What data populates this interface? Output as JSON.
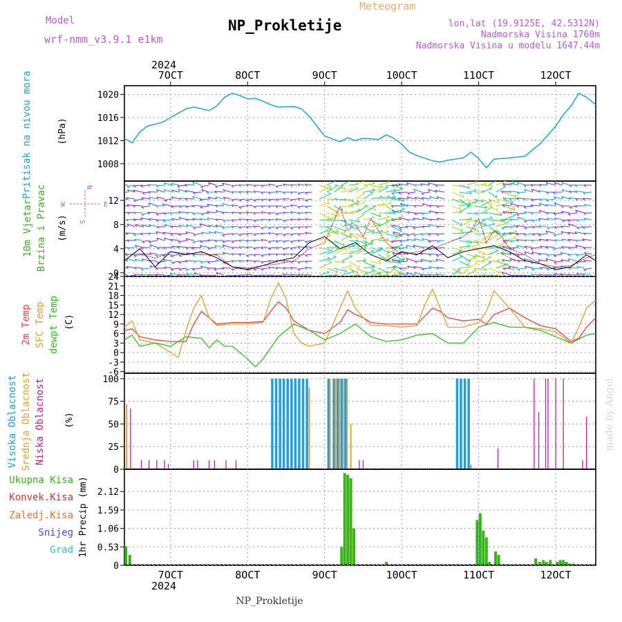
{
  "header": {
    "model_label": "Model",
    "model_name": "wrf-nmm_v3.9.1 e1km",
    "title": "NP_Prokletije",
    "meteogram_label": "Meteogram",
    "lonlat": "lon,lat (19.9125E, 42.5312N)",
    "elevation": "Nadmorska Visina 1760m",
    "model_elevation": "Nadmorska Visina u modelu 1647.44m",
    "footer_title": "NP_Prokletije",
    "watermark": "made by Angel"
  },
  "colors": {
    "pressure": "#1fa2e0",
    "temp2m": "#e84040",
    "sfc_temp": "#e0a030",
    "dewpoint": "#30c020",
    "high_cloud": "#1e9ee6",
    "mid_cloud": "#e0a030",
    "low_cloud": "#c0208a",
    "total_precip": "#3cb020",
    "magenta_text": "#b35cd6",
    "orange_text": "#e8b060",
    "wind_speed_red": "#e03030",
    "wind_speed_black": "#000000"
  },
  "chart_data": [
    {
      "type": "line",
      "id": "pressure",
      "ylabel": "Pritisak na nivou mora",
      "unit": "(hPa)",
      "ylim": [
        1005,
        1021.5
      ],
      "yticks": [
        1008,
        1012,
        1016,
        1020
      ],
      "grid": true,
      "date_axis": {
        "year": "2024",
        "ticks": [
          "7OCT",
          "8OCT",
          "9OCT",
          "10OCT",
          "11OCT",
          "12OCT"
        ],
        "range_days": [
          6.4,
          12.52
        ],
        "tick_days": [
          7,
          8,
          9,
          10,
          11,
          12
        ]
      },
      "series": [
        {
          "name": "",
          "x": [
            6.4,
            6.5,
            6.6,
            6.7,
            6.9,
            7.0,
            7.2,
            7.3,
            7.5,
            7.6,
            7.7,
            7.8,
            7.9,
            8.0,
            8.1,
            8.2,
            8.3,
            8.4,
            8.6,
            8.7,
            8.8,
            8.9,
            9.0,
            9.2,
            9.3,
            9.4,
            9.5,
            9.7,
            9.8,
            9.9,
            10.0,
            10.1,
            10.2,
            10.4,
            10.5,
            10.6,
            10.8,
            10.9,
            11.0,
            11.1,
            11.2,
            11.4,
            11.6,
            11.8,
            12.0,
            12.1,
            12.2,
            12.3,
            12.4,
            12.52
          ],
          "values": [
            1012.4,
            1011.6,
            1013.5,
            1014.5,
            1015.2,
            1016,
            1017.5,
            1017.8,
            1017.2,
            1018,
            1019.5,
            1020.2,
            1019.8,
            1019.2,
            1019.3,
            1018.8,
            1018.2,
            1017.8,
            1017.9,
            1017.5,
            1016.2,
            1014.5,
            1012.8,
            1011.8,
            1012.5,
            1012,
            1012.4,
            1012.2,
            1013,
            1012.4,
            1011.4,
            1010,
            1009.4,
            1008.5,
            1008.3,
            1008.6,
            1009,
            1010,
            1008.9,
            1007.3,
            1008.8,
            1009,
            1009.3,
            1011.5,
            1014.5,
            1016.5,
            1018,
            1020.2,
            1019.5,
            1018.2
          ]
        }
      ]
    },
    {
      "type": "line",
      "id": "wind",
      "ylabel": "10m Vjetar Brzina i Pravac",
      "unit": "(m/s)",
      "ylim": [
        -0.6,
        15.2
      ],
      "yticks": [
        0,
        4,
        8,
        12
      ],
      "grid": true,
      "compass": {
        "n": "N",
        "e": "E",
        "w": "W",
        "s": "S"
      },
      "series": [
        {
          "name": "",
          "x": [
            6.4,
            6.6,
            6.8,
            7.0,
            7.2,
            7.4,
            7.6,
            7.8,
            8.0,
            8.2,
            8.4,
            8.6,
            8.8,
            9.0,
            9.1,
            9.2,
            9.3,
            9.4,
            9.5,
            9.6,
            9.7,
            9.8,
            9.9,
            10.0,
            10.2,
            10.4,
            10.6,
            10.8,
            10.9,
            11.0,
            11.1,
            11.2,
            11.3,
            11.4,
            11.6,
            11.8,
            12.0,
            12.2,
            12.4,
            12.52
          ],
          "values": [
            3,
            3.2,
            2.4,
            3.5,
            3.2,
            3,
            3,
            1,
            0.8,
            1.2,
            1.5,
            2,
            4,
            5,
            8,
            11,
            7,
            8,
            6,
            9,
            7,
            5,
            4,
            3,
            3.5,
            4,
            5,
            6,
            7,
            9,
            5,
            7,
            6,
            4,
            3,
            1.5,
            1,
            1.2,
            2.5,
            3
          ]
        },
        {
          "name": "",
          "x": [
            6.4,
            6.6,
            6.8,
            7.0,
            7.2,
            7.4,
            7.6,
            7.8,
            8.0,
            8.2,
            8.4,
            8.6,
            8.8,
            9.0,
            9.2,
            9.4,
            9.6,
            9.8,
            10.0,
            10.2,
            10.4,
            10.6,
            10.8,
            11.0,
            11.2,
            11.4,
            11.6,
            11.8,
            12.0,
            12.2,
            12.4,
            12.52
          ],
          "values": [
            2,
            4,
            1,
            3.5,
            3,
            3.5,
            2.5,
            1,
            0.5,
            1.2,
            2,
            2.5,
            5,
            6,
            4,
            5,
            3,
            2,
            3.5,
            3,
            4.5,
            2.5,
            3.5,
            4,
            4.5,
            3.5,
            2,
            1.5,
            0.5,
            1,
            3,
            2
          ]
        }
      ]
    },
    {
      "type": "line",
      "id": "temperature",
      "ylabel_lines": [
        "2m Temp",
        "SFC Temp",
        "dewpt Temp"
      ],
      "unit": "(C)",
      "ylim": [
        -6.5,
        24
      ],
      "yticks": [
        -6,
        -3,
        0,
        3,
        6,
        9,
        12,
        15,
        18,
        21,
        24
      ],
      "grid": true,
      "series": [
        {
          "name": "2m Temp",
          "x": [
            6.4,
            6.5,
            6.6,
            6.8,
            7.0,
            7.2,
            7.3,
            7.4,
            7.5,
            7.6,
            7.8,
            8.0,
            8.2,
            8.3,
            8.4,
            8.5,
            8.6,
            8.8,
            9.0,
            9.2,
            9.3,
            9.4,
            9.5,
            9.6,
            9.8,
            10.0,
            10.2,
            10.3,
            10.4,
            10.5,
            10.6,
            10.8,
            11.0,
            11.1,
            11.2,
            11.4,
            11.6,
            11.8,
            12.0,
            12.2,
            12.3,
            12.4,
            12.52
          ],
          "values": [
            7,
            7.5,
            5,
            4,
            3.5,
            3.5,
            9,
            13,
            11,
            9,
            9.5,
            9.5,
            9.8,
            13,
            16,
            14,
            10,
            7,
            6,
            9.5,
            13.5,
            12,
            11,
            9.5,
            9,
            9,
            9,
            11.5,
            14,
            13,
            11,
            10,
            10.5,
            9,
            12,
            14,
            11,
            8.5,
            7.5,
            3.5,
            4.5,
            8,
            11
          ]
        },
        {
          "name": "SFC Temp",
          "x": [
            6.4,
            6.5,
            6.6,
            6.8,
            7.0,
            7.1,
            7.2,
            7.3,
            7.4,
            7.5,
            7.6,
            7.8,
            8.0,
            8.2,
            8.3,
            8.4,
            8.5,
            8.6,
            8.7,
            8.8,
            9.0,
            9.2,
            9.3,
            9.4,
            9.5,
            9.6,
            9.8,
            10.0,
            10.2,
            10.3,
            10.4,
            10.5,
            10.6,
            10.8,
            11.0,
            11.1,
            11.2,
            11.4,
            11.6,
            11.8,
            12.0,
            12.2,
            12.3,
            12.4,
            12.52
          ],
          "values": [
            8,
            10,
            4,
            3,
            0,
            -1.5,
            7,
            14,
            18,
            11,
            8.5,
            9,
            9,
            9.5,
            17,
            22,
            17,
            6,
            3,
            2,
            3,
            14,
            19.5,
            14,
            11,
            8.5,
            8.5,
            8,
            8.5,
            15,
            20,
            14,
            8,
            8,
            9.5,
            13,
            19.5,
            14,
            8,
            7.5,
            6.5,
            3,
            8,
            14,
            16.5
          ]
        },
        {
          "name": "dewpt Temp",
          "x": [
            6.4,
            6.5,
            6.6,
            6.8,
            7.0,
            7.2,
            7.4,
            7.5,
            7.6,
            7.7,
            7.8,
            8.0,
            8.1,
            8.2,
            8.4,
            8.6,
            8.8,
            9.0,
            9.2,
            9.4,
            9.5,
            9.6,
            9.8,
            10.0,
            10.2,
            10.4,
            10.6,
            10.8,
            11.0,
            11.2,
            11.4,
            11.6,
            11.8,
            12.0,
            12.2,
            12.4,
            12.52
          ],
          "values": [
            4,
            5.5,
            2,
            3,
            2,
            5,
            4.5,
            1.5,
            4,
            2,
            2,
            -2,
            -4.5,
            -2,
            5,
            9,
            7,
            4,
            6,
            9,
            7,
            5,
            3.5,
            4,
            5.5,
            6,
            3,
            3,
            8,
            9.5,
            8,
            8,
            7,
            5,
            3,
            5.5,
            6
          ]
        }
      ]
    },
    {
      "type": "bar",
      "id": "clouds",
      "ylabel_lines": [
        "Visoka Oblacnost",
        "Srednja Oblacnost",
        "Niska Oblacnost"
      ],
      "unit": "(%)",
      "ylim": [
        0,
        106
      ],
      "yticks": [
        0,
        25,
        50,
        75,
        100
      ],
      "grid": true,
      "series": [
        {
          "name": "Visoka Oblacnost",
          "x": [
            8.32,
            8.37,
            8.42,
            8.47,
            8.52,
            8.57,
            8.62,
            8.67,
            8.72,
            8.77,
            9.05,
            9.12,
            9.17,
            9.22,
            9.27,
            10.72,
            10.77,
            10.82,
            10.87
          ],
          "values": [
            100,
            100,
            100,
            100,
            100,
            100,
            100,
            100,
            100,
            100,
            100,
            100,
            100,
            100,
            100,
            100,
            100,
            100,
            100
          ]
        },
        {
          "name": "Srednja Oblacnost",
          "x": [
            6.43,
            8.8,
            9.07,
            9.14,
            9.19,
            9.24,
            9.29,
            9.34
          ],
          "values": [
            72,
            90,
            100,
            100,
            100,
            100,
            100,
            50
          ]
        },
        {
          "name": "Niska Oblacnost",
          "x": [
            6.48,
            6.62,
            6.72,
            6.82,
            6.92,
            6.97,
            7.3,
            7.35,
            7.5,
            7.57,
            7.72,
            7.85,
            9.45,
            9.5,
            10.9,
            11.25,
            11.72,
            11.78,
            11.87,
            11.9,
            12.0,
            12.1,
            12.35,
            12.4
          ],
          "values": [
            67,
            10,
            10,
            10,
            10,
            6,
            10,
            10,
            10,
            10,
            10,
            10,
            10,
            10,
            5,
            23,
            100,
            63,
            100,
            100,
            100,
            100,
            10,
            58
          ]
        }
      ]
    },
    {
      "type": "bar",
      "id": "precip",
      "ylabel_lines": [
        "Ukupna Kisa",
        "Konvek.Kisa",
        "Zaledj.Kisa",
        "Snijeg",
        "Grad"
      ],
      "unit": "1hr Precip (mm)",
      "ylim": [
        0,
        2.76
      ],
      "yticks": [
        0,
        0.53,
        1.06,
        1.59,
        2.12
      ],
      "grid": true,
      "date_axis": {
        "year": "2024",
        "ticks": [
          "7OCT",
          "8OCT",
          "9OCT",
          "10OCT",
          "11OCT",
          "12OCT"
        ],
        "tick_days": [
          7,
          8,
          9,
          10,
          11,
          12
        ]
      },
      "series": [
        {
          "name": "Ukupna Kisa",
          "x": [
            6.42,
            6.47,
            9.22,
            9.26,
            9.3,
            9.34,
            9.38,
            9.8,
            10.98,
            11.02,
            11.06,
            11.1,
            11.14,
            11.22,
            11.26,
            11.74,
            11.79,
            11.84,
            11.88,
            11.93,
            12.02,
            12.06,
            12.1,
            12.14,
            12.18,
            12.23
          ],
          "values": [
            0.55,
            0.3,
            0.53,
            2.65,
            2.6,
            2.5,
            1.06,
            0.1,
            1.3,
            1.5,
            1.0,
            0.8,
            0.1,
            0.4,
            0.3,
            0.2,
            0.1,
            0.15,
            0.1,
            0.15,
            0.1,
            0.15,
            0.15,
            0.1,
            0.05,
            0.05
          ]
        }
      ]
    }
  ]
}
